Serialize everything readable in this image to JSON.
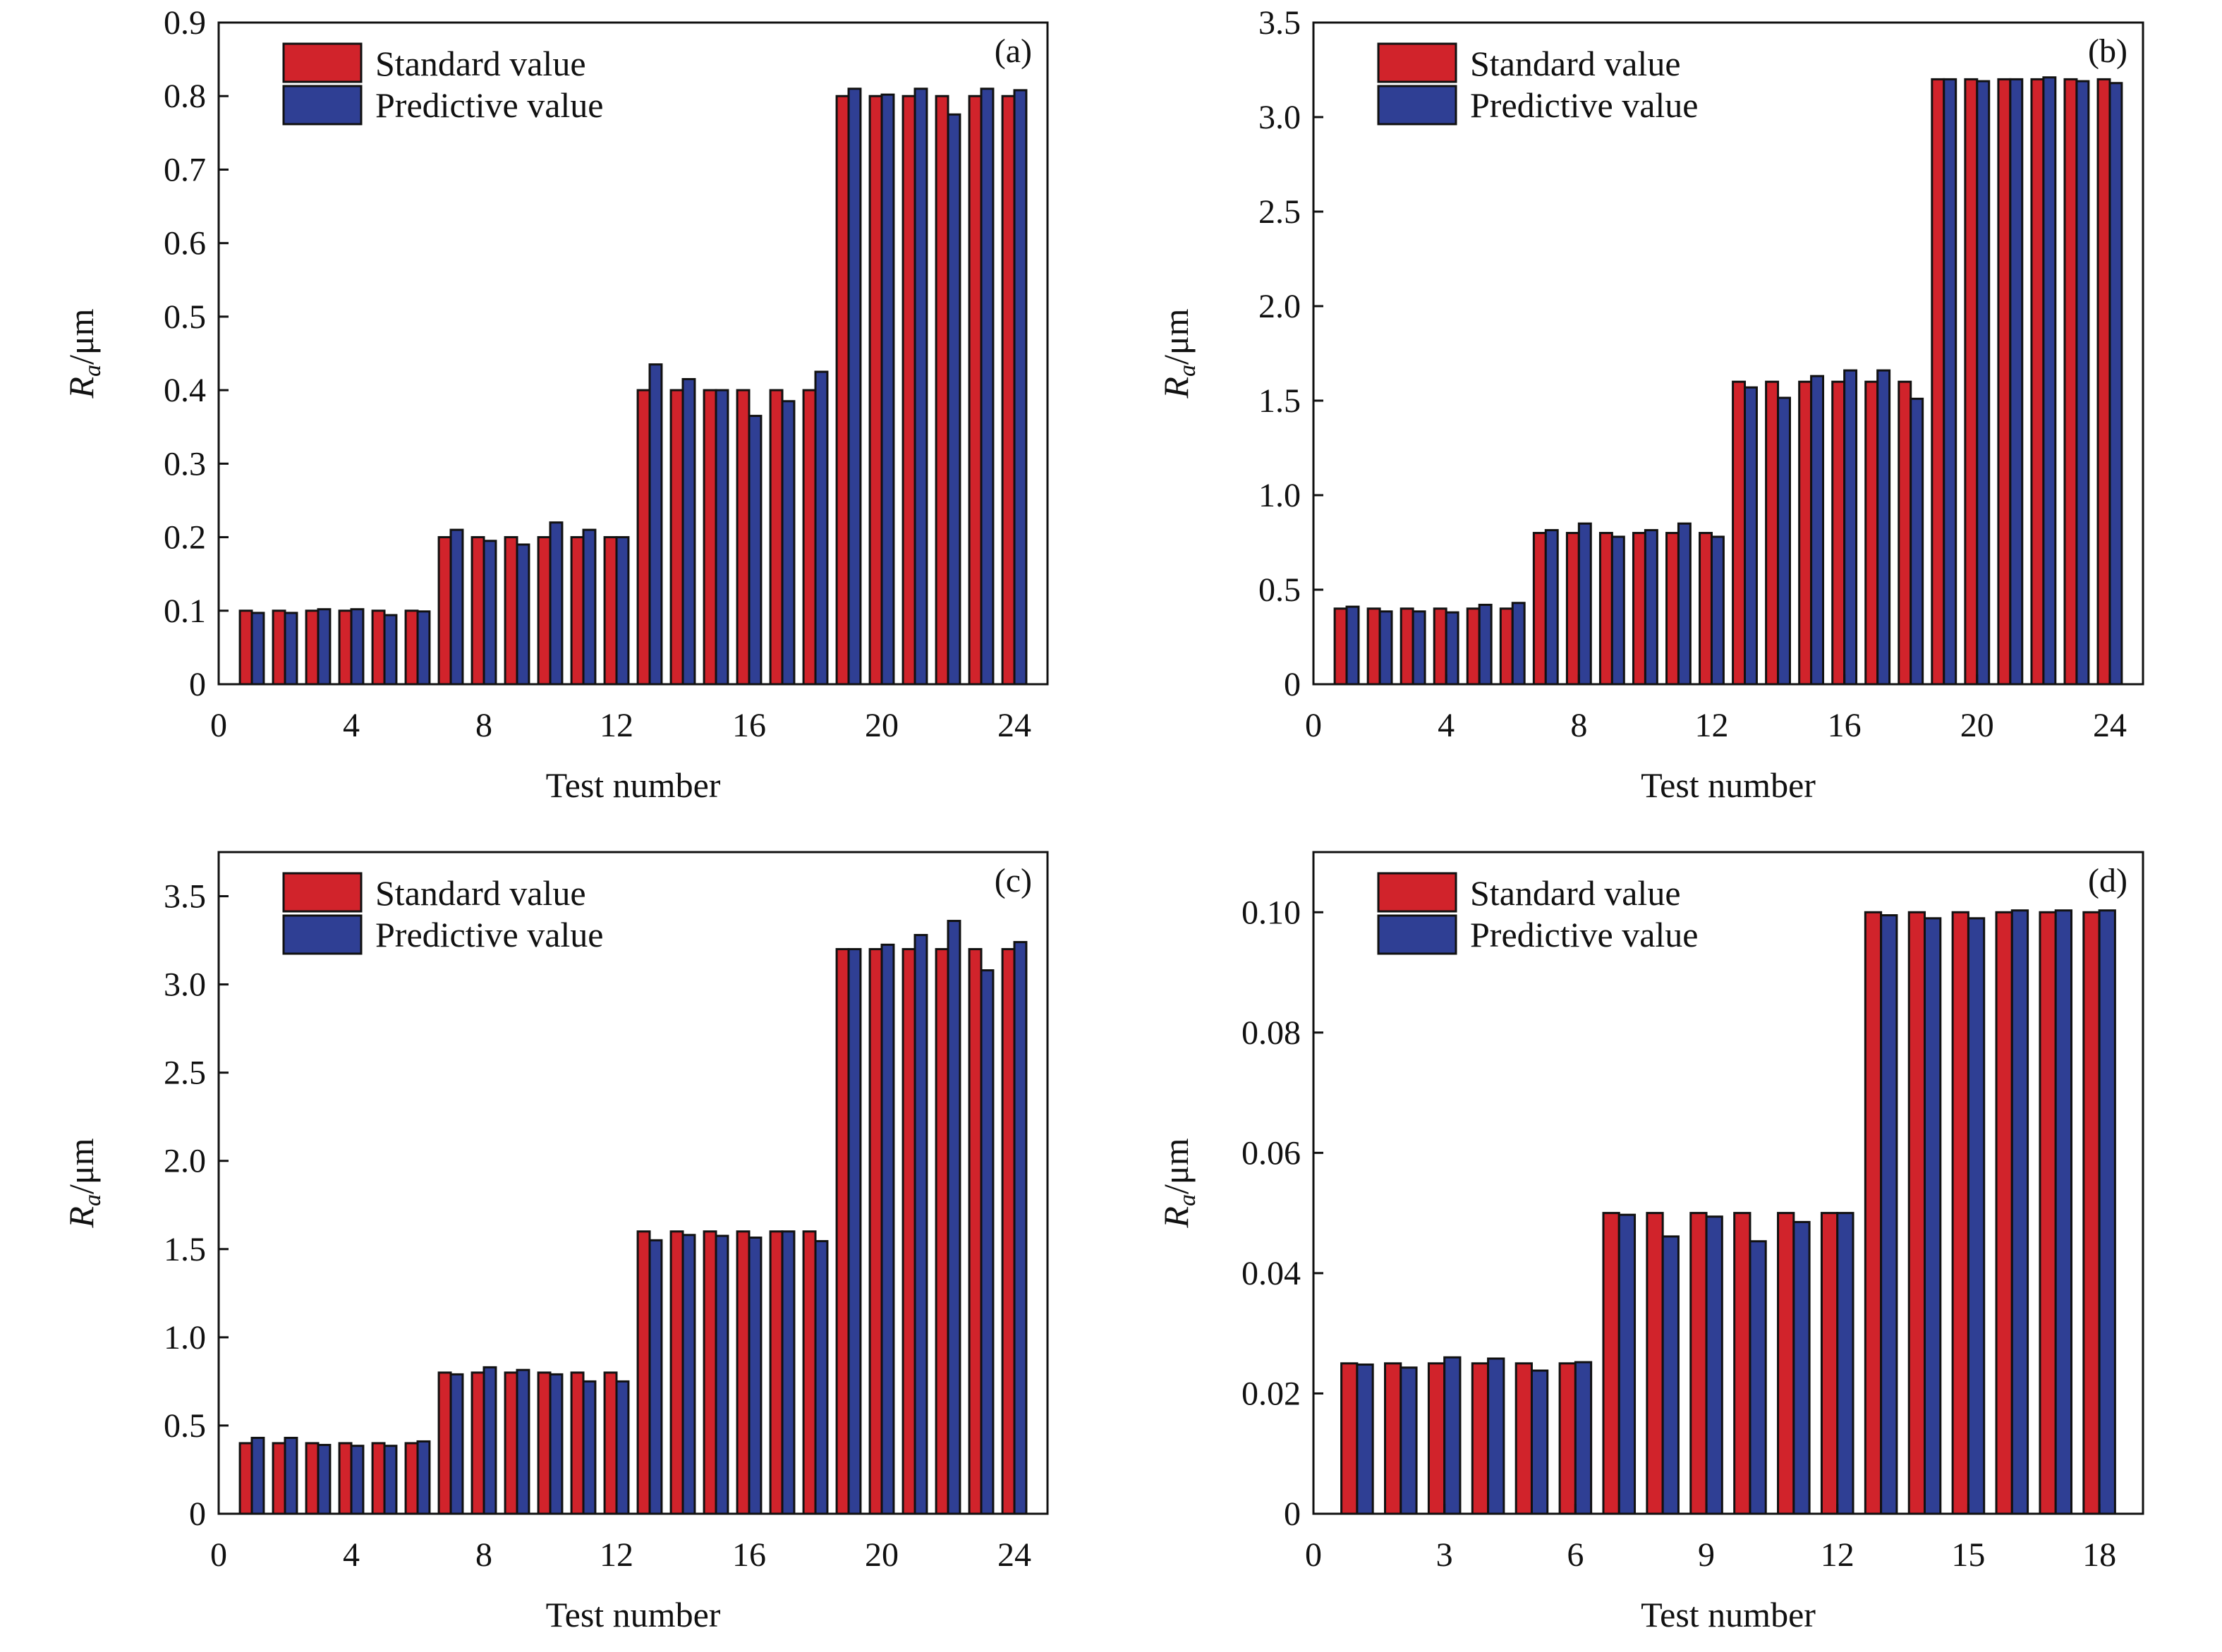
{
  "colors": {
    "standard": "#d1232b",
    "predictive": "#2f3f94",
    "outline": "#111111"
  },
  "legend": {
    "standard": "Standard value",
    "predictive": "Predictive value"
  },
  "chart_data": [
    {
      "type": "bar",
      "panel": "(a)",
      "xlabel": "Test number",
      "ylabel_symbol": "R",
      "ylabel_sub": "a",
      "ylabel_unit": "/μm",
      "xlim": [
        0,
        25
      ],
      "ylim": [
        0,
        0.9
      ],
      "xticks": [
        0,
        4,
        8,
        12,
        16,
        20,
        24
      ],
      "xtick_labels": [
        "0",
        "4",
        "8",
        "12",
        "16",
        "20",
        "24"
      ],
      "yticks": [
        0,
        0.1,
        0.2,
        0.3,
        0.4,
        0.5,
        0.6,
        0.7,
        0.8,
        0.9
      ],
      "ytick_labels": [
        "0",
        "0.1",
        "0.2",
        "0.3",
        "0.4",
        "0.5",
        "0.6",
        "0.7",
        "0.8",
        "0.9"
      ],
      "categories": [
        1,
        2,
        3,
        4,
        5,
        6,
        7,
        8,
        9,
        10,
        11,
        12,
        13,
        14,
        15,
        16,
        17,
        18,
        19,
        20,
        21,
        22,
        23,
        24
      ],
      "series": [
        {
          "name": "Standard value",
          "values": [
            0.1,
            0.1,
            0.1,
            0.1,
            0.1,
            0.1,
            0.2,
            0.2,
            0.2,
            0.2,
            0.2,
            0.2,
            0.4,
            0.4,
            0.4,
            0.4,
            0.4,
            0.4,
            0.8,
            0.8,
            0.8,
            0.8,
            0.8,
            0.8
          ]
        },
        {
          "name": "Predictive value",
          "values": [
            0.097,
            0.097,
            0.102,
            0.102,
            0.094,
            0.099,
            0.21,
            0.195,
            0.19,
            0.22,
            0.21,
            0.2,
            0.435,
            0.415,
            0.4,
            0.365,
            0.385,
            0.425,
            0.81,
            0.802,
            0.81,
            0.775,
            0.81,
            0.808
          ]
        }
      ]
    },
    {
      "type": "bar",
      "panel": "(b)",
      "xlabel": "Test number",
      "ylabel_symbol": "R",
      "ylabel_sub": "a",
      "ylabel_unit": "/μm",
      "xlim": [
        0,
        25
      ],
      "ylim": [
        0,
        3.5
      ],
      "xticks": [
        0,
        4,
        8,
        12,
        16,
        20,
        24
      ],
      "xtick_labels": [
        "0",
        "4",
        "8",
        "12",
        "16",
        "20",
        "24"
      ],
      "yticks": [
        0,
        0.5,
        1.0,
        1.5,
        2.0,
        2.5,
        3.0,
        3.5
      ],
      "ytick_labels": [
        "0",
        "0.5",
        "1.0",
        "1.5",
        "2.0",
        "2.5",
        "3.0",
        "3.5"
      ],
      "categories": [
        1,
        2,
        3,
        4,
        5,
        6,
        7,
        8,
        9,
        10,
        11,
        12,
        13,
        14,
        15,
        16,
        17,
        18,
        19,
        20,
        21,
        22,
        23,
        24
      ],
      "series": [
        {
          "name": "Standard value",
          "values": [
            0.4,
            0.4,
            0.4,
            0.4,
            0.4,
            0.4,
            0.8,
            0.8,
            0.8,
            0.8,
            0.8,
            0.8,
            1.6,
            1.6,
            1.6,
            1.6,
            1.6,
            1.6,
            3.2,
            3.2,
            3.2,
            3.2,
            3.2,
            3.2
          ]
        },
        {
          "name": "Predictive value",
          "values": [
            0.41,
            0.385,
            0.385,
            0.38,
            0.42,
            0.43,
            0.815,
            0.85,
            0.78,
            0.815,
            0.85,
            0.78,
            1.57,
            1.515,
            1.63,
            1.66,
            1.66,
            1.51,
            3.2,
            3.19,
            3.2,
            3.21,
            3.19,
            3.18
          ]
        }
      ]
    },
    {
      "type": "bar",
      "panel": "(c)",
      "xlabel": "Test number",
      "ylabel_symbol": "R",
      "ylabel_sub": "a",
      "ylabel_unit": "/μm",
      "xlim": [
        0,
        25
      ],
      "ylim": [
        0,
        3.75
      ],
      "xticks": [
        0,
        4,
        8,
        12,
        16,
        20,
        24
      ],
      "xtick_labels": [
        "0",
        "4",
        "8",
        "12",
        "16",
        "20",
        "24"
      ],
      "yticks": [
        0,
        0.5,
        1.0,
        1.5,
        2.0,
        2.5,
        3.0,
        3.5
      ],
      "ytick_labels": [
        "0",
        "0.5",
        "1.0",
        "1.5",
        "2.0",
        "2.5",
        "3.0",
        "3.5"
      ],
      "categories": [
        1,
        2,
        3,
        4,
        5,
        6,
        7,
        8,
        9,
        10,
        11,
        12,
        13,
        14,
        15,
        16,
        17,
        18,
        19,
        20,
        21,
        22,
        23,
        24
      ],
      "series": [
        {
          "name": "Standard value",
          "values": [
            0.4,
            0.4,
            0.4,
            0.4,
            0.4,
            0.4,
            0.8,
            0.8,
            0.8,
            0.8,
            0.8,
            0.8,
            1.6,
            1.6,
            1.6,
            1.6,
            1.6,
            1.6,
            3.2,
            3.2,
            3.2,
            3.2,
            3.2,
            3.2
          ]
        },
        {
          "name": "Predictive value",
          "values": [
            0.43,
            0.43,
            0.39,
            0.385,
            0.385,
            0.41,
            0.79,
            0.83,
            0.815,
            0.79,
            0.75,
            0.75,
            1.55,
            1.58,
            1.575,
            1.565,
            1.6,
            1.545,
            3.2,
            3.225,
            3.28,
            3.36,
            3.08,
            3.24
          ]
        }
      ]
    },
    {
      "type": "bar",
      "panel": "(d)",
      "xlabel": "Test number",
      "ylabel_symbol": "R",
      "ylabel_sub": "a",
      "ylabel_unit": "/μm",
      "xlim": [
        0,
        19
      ],
      "ylim": [
        0,
        0.11
      ],
      "xticks": [
        0,
        3,
        6,
        9,
        12,
        15,
        18
      ],
      "xtick_labels": [
        "0",
        "3",
        "6",
        "9",
        "12",
        "15",
        "18"
      ],
      "yticks": [
        0,
        0.02,
        0.04,
        0.06,
        0.08,
        0.1
      ],
      "ytick_labels": [
        "0",
        "0.02",
        "0.04",
        "0.06",
        "0.08",
        "0.10"
      ],
      "categories": [
        1,
        2,
        3,
        4,
        5,
        6,
        7,
        8,
        9,
        10,
        11,
        12,
        13,
        14,
        15,
        16,
        17,
        18
      ],
      "series": [
        {
          "name": "Standard value",
          "values": [
            0.025,
            0.025,
            0.025,
            0.025,
            0.025,
            0.025,
            0.05,
            0.05,
            0.05,
            0.05,
            0.05,
            0.05,
            0.1,
            0.1,
            0.1,
            0.1,
            0.1,
            0.1
          ]
        },
        {
          "name": "Predictive value",
          "values": [
            0.0248,
            0.0243,
            0.026,
            0.0258,
            0.0238,
            0.0252,
            0.0497,
            0.0461,
            0.0494,
            0.0453,
            0.0485,
            0.05,
            0.0995,
            0.099,
            0.099,
            0.1003,
            0.1003,
            0.1003
          ]
        }
      ]
    }
  ]
}
